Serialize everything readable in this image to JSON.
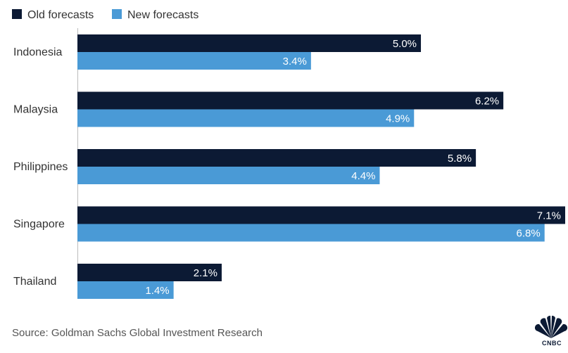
{
  "chart_data": {
    "type": "bar",
    "orientation": "horizontal",
    "categories": [
      "Indonesia",
      "Malaysia",
      "Philippines",
      "Singapore",
      "Thailand"
    ],
    "series": [
      {
        "name": "Old forecasts",
        "color": "#0c1a34",
        "values": [
          5.0,
          6.2,
          5.8,
          7.1,
          2.1
        ],
        "labels": [
          "5.0%",
          "6.2%",
          "5.8%",
          "7.1%",
          "2.1%"
        ]
      },
      {
        "name": "New forecasts",
        "color": "#4a9ad6",
        "values": [
          3.4,
          4.9,
          4.4,
          6.8,
          1.4
        ],
        "labels": [
          "3.4%",
          "4.9%",
          "4.4%",
          "6.8%",
          "1.4%"
        ]
      }
    ],
    "xlim": [
      0,
      7.1
    ],
    "legend_position": "top-left",
    "grid": false
  },
  "source": "Source: Goldman Sachs Global Investment Research",
  "logo": {
    "text": "CNBC"
  }
}
